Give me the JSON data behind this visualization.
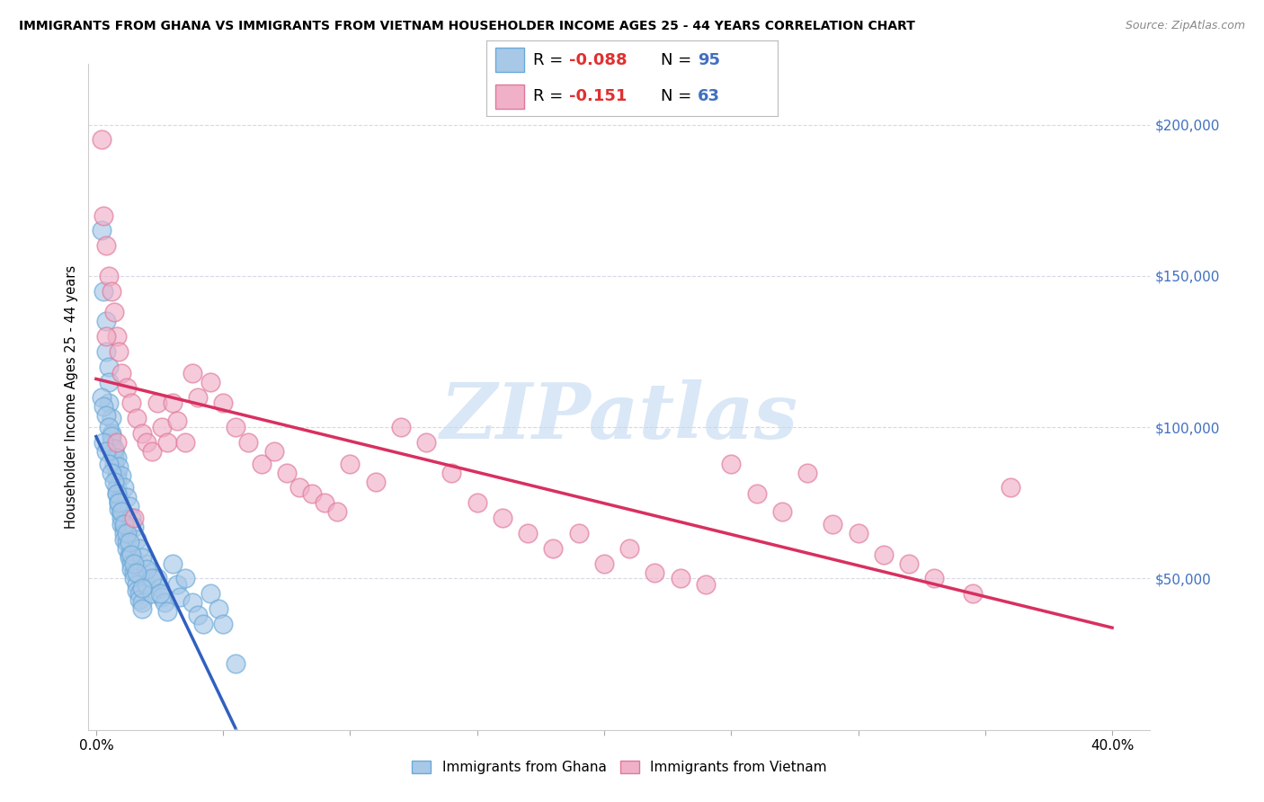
{
  "title": "IMMIGRANTS FROM GHANA VS IMMIGRANTS FROM VIETNAM HOUSEHOLDER INCOME AGES 25 - 44 YEARS CORRELATION CHART",
  "source": "Source: ZipAtlas.com",
  "ylabel": "Householder Income Ages 25 - 44 years",
  "xlim": [
    -0.003,
    0.415
  ],
  "ylim": [
    0,
    220000
  ],
  "xticks": [
    0.0,
    0.05,
    0.1,
    0.15,
    0.2,
    0.25,
    0.3,
    0.35,
    0.4
  ],
  "xtick_labels": [
    "0.0%",
    "",
    "",
    "",
    "",
    "",
    "",
    "",
    "40.0%"
  ],
  "ytick_positions": [
    50000,
    100000,
    150000,
    200000
  ],
  "ytick_labels": [
    "$50,000",
    "$100,000",
    "$150,000",
    "$200,000"
  ],
  "ghana_color": "#a8c8e8",
  "ghana_edge": "#6aaad8",
  "vietnam_color": "#f0b0c8",
  "vietnam_edge": "#e07898",
  "ghana_line_color": "#3060c0",
  "vietnam_line_color": "#d83060",
  "ghana_dashed_color": "#90b8e0",
  "watermark": "ZIPatlas",
  "watermark_color": "#c0d8f0",
  "legend_R_color": "#e03030",
  "legend_N_color": "#4070c0",
  "grid_color": "#d8d8e8",
  "ghana_R": -0.088,
  "ghana_N": 95,
  "vietnam_R": -0.151,
  "vietnam_N": 63,
  "ghana_x": [
    0.002,
    0.003,
    0.004,
    0.004,
    0.005,
    0.005,
    0.005,
    0.006,
    0.006,
    0.006,
    0.007,
    0.007,
    0.007,
    0.008,
    0.008,
    0.008,
    0.008,
    0.009,
    0.009,
    0.009,
    0.01,
    0.01,
    0.01,
    0.011,
    0.011,
    0.011,
    0.012,
    0.012,
    0.013,
    0.013,
    0.014,
    0.014,
    0.015,
    0.015,
    0.016,
    0.016,
    0.017,
    0.017,
    0.018,
    0.018,
    0.02,
    0.02,
    0.022,
    0.022,
    0.024,
    0.025,
    0.026,
    0.027,
    0.028,
    0.03,
    0.032,
    0.033,
    0.035,
    0.038,
    0.04,
    0.042,
    0.045,
    0.048,
    0.05,
    0.055,
    0.002,
    0.003,
    0.004,
    0.005,
    0.006,
    0.007,
    0.008,
    0.009,
    0.01,
    0.011,
    0.012,
    0.013,
    0.014,
    0.015,
    0.016,
    0.017,
    0.018,
    0.02,
    0.022,
    0.025,
    0.003,
    0.004,
    0.005,
    0.006,
    0.007,
    0.008,
    0.009,
    0.01,
    0.011,
    0.012,
    0.013,
    0.014,
    0.015,
    0.016,
    0.018
  ],
  "ghana_y": [
    165000,
    145000,
    135000,
    125000,
    120000,
    115000,
    108000,
    103000,
    98000,
    95000,
    92000,
    90000,
    88000,
    85000,
    83000,
    80000,
    78000,
    76000,
    75000,
    73000,
    72000,
    70000,
    68000,
    67000,
    65000,
    63000,
    62000,
    60000,
    58000,
    57000,
    55000,
    53000,
    52000,
    50000,
    48000,
    46000,
    45000,
    43000,
    42000,
    40000,
    55000,
    48000,
    52000,
    45000,
    50000,
    47000,
    44000,
    42000,
    39000,
    55000,
    48000,
    44000,
    50000,
    42000,
    38000,
    35000,
    45000,
    40000,
    35000,
    22000,
    110000,
    107000,
    104000,
    100000,
    97000,
    93000,
    90000,
    87000,
    84000,
    80000,
    77000,
    74000,
    70000,
    67000,
    63000,
    60000,
    57000,
    53000,
    50000,
    45000,
    95000,
    92000,
    88000,
    85000,
    82000,
    78000,
    75000,
    72000,
    68000,
    65000,
    62000,
    58000,
    55000,
    52000,
    47000
  ],
  "vietnam_x": [
    0.002,
    0.003,
    0.004,
    0.005,
    0.006,
    0.007,
    0.008,
    0.009,
    0.01,
    0.012,
    0.014,
    0.016,
    0.018,
    0.02,
    0.022,
    0.024,
    0.026,
    0.028,
    0.03,
    0.032,
    0.035,
    0.038,
    0.04,
    0.045,
    0.05,
    0.055,
    0.06,
    0.065,
    0.07,
    0.075,
    0.08,
    0.085,
    0.09,
    0.095,
    0.1,
    0.11,
    0.12,
    0.13,
    0.14,
    0.15,
    0.16,
    0.17,
    0.18,
    0.19,
    0.2,
    0.21,
    0.22,
    0.23,
    0.24,
    0.25,
    0.26,
    0.27,
    0.28,
    0.29,
    0.3,
    0.31,
    0.32,
    0.33,
    0.345,
    0.36,
    0.004,
    0.008,
    0.015
  ],
  "vietnam_y": [
    195000,
    170000,
    160000,
    150000,
    145000,
    138000,
    130000,
    125000,
    118000,
    113000,
    108000,
    103000,
    98000,
    95000,
    92000,
    108000,
    100000,
    95000,
    108000,
    102000,
    95000,
    118000,
    110000,
    115000,
    108000,
    100000,
    95000,
    88000,
    92000,
    85000,
    80000,
    78000,
    75000,
    72000,
    88000,
    82000,
    100000,
    95000,
    85000,
    75000,
    70000,
    65000,
    60000,
    65000,
    55000,
    60000,
    52000,
    50000,
    48000,
    88000,
    78000,
    72000,
    85000,
    68000,
    65000,
    58000,
    55000,
    50000,
    45000,
    80000,
    130000,
    95000,
    70000
  ]
}
